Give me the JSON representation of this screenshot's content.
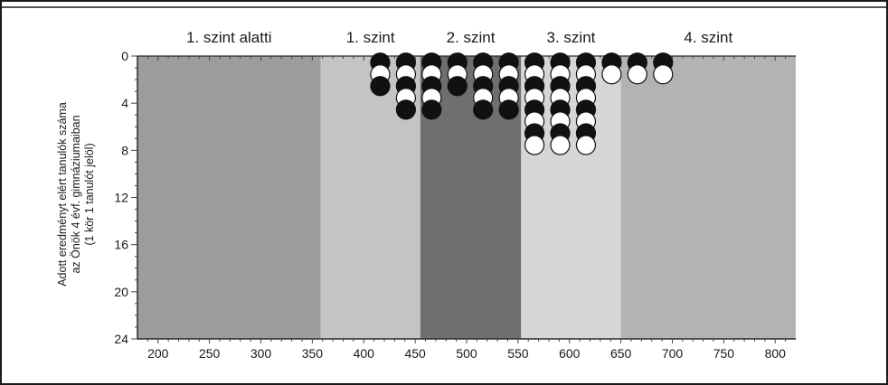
{
  "chart_data": {
    "type": "scatter",
    "subtype": "dot-plot",
    "title": "",
    "ylabel_lines": [
      "Adott eredményt elért tanulók száma",
      "az Önök 4 évf. gimnáziumaiban",
      "(1 kör 1 tanulót jelöl)"
    ],
    "xlabel": "",
    "xlim": [
      180,
      820
    ],
    "ylim": [
      0,
      24
    ],
    "y_inverted": true,
    "x_ticks": [
      200,
      250,
      300,
      350,
      400,
      450,
      500,
      550,
      600,
      650,
      700,
      750,
      800
    ],
    "y_ticks": [
      0,
      4,
      8,
      12,
      16,
      20,
      24
    ],
    "grid": false,
    "levels": [
      {
        "label": "1. szint alatti",
        "from": 180,
        "to": 358,
        "color": "#9d9d9d"
      },
      {
        "label": "1. szint",
        "from": 358,
        "to": 455,
        "color": "#c4c4c4"
      },
      {
        "label": "2. szint",
        "from": 455,
        "to": 553,
        "color": "#6f6f6f"
      },
      {
        "label": "3. szint",
        "from": 553,
        "to": 650,
        "color": "#d6d6d6"
      },
      {
        "label": "4. szint",
        "from": 650,
        "to": 820,
        "color": "#b3b3b3"
      }
    ],
    "dot_columns": [
      {
        "x": 416,
        "dots": [
          "black",
          "white",
          "black"
        ]
      },
      {
        "x": 441,
        "dots": [
          "black",
          "white",
          "black",
          "white",
          "black"
        ]
      },
      {
        "x": 466,
        "dots": [
          "black",
          "white",
          "black",
          "white",
          "black"
        ]
      },
      {
        "x": 491,
        "dots": [
          "black",
          "white",
          "black"
        ]
      },
      {
        "x": 516,
        "dots": [
          "black",
          "white",
          "black",
          "white",
          "black"
        ]
      },
      {
        "x": 541,
        "dots": [
          "black",
          "white",
          "black",
          "white",
          "black"
        ]
      },
      {
        "x": 566,
        "dots": [
          "black",
          "white",
          "black",
          "white",
          "black",
          "white",
          "black",
          "white"
        ]
      },
      {
        "x": 591,
        "dots": [
          "black",
          "white",
          "black",
          "white",
          "black",
          "white",
          "black",
          "white"
        ]
      },
      {
        "x": 616,
        "dots": [
          "black",
          "white",
          "black",
          "white",
          "black",
          "white",
          "black",
          "white"
        ]
      },
      {
        "x": 641,
        "dots": [
          "black",
          "white"
        ]
      },
      {
        "x": 666,
        "dots": [
          "black",
          "white"
        ]
      },
      {
        "x": 691,
        "dots": [
          "black",
          "white"
        ]
      }
    ]
  }
}
